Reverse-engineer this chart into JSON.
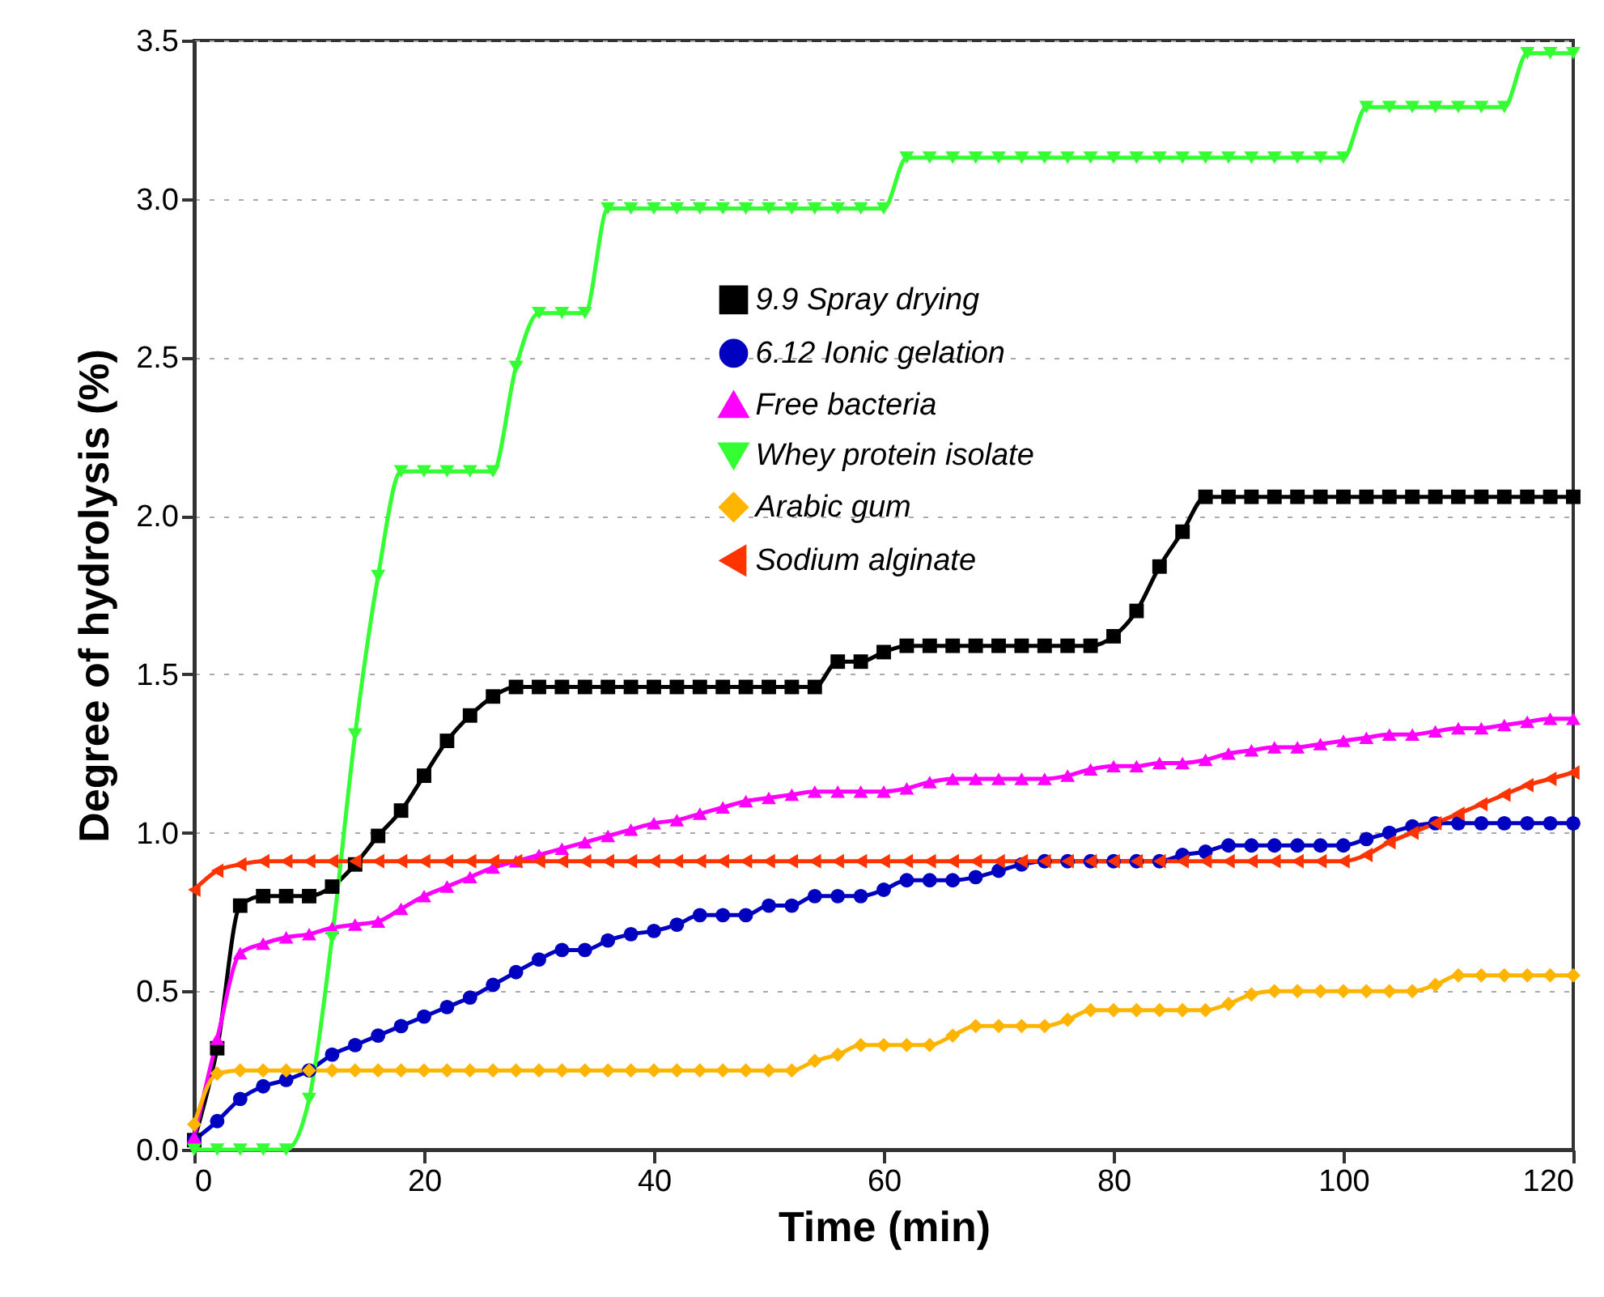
{
  "chart_data": {
    "type": "line",
    "xlabel": "Time (min)",
    "ylabel": "Degree of hydrolysis (%)",
    "x": [
      0,
      2,
      4,
      6,
      8,
      10,
      12,
      14,
      16,
      18,
      20,
      22,
      24,
      26,
      28,
      30,
      32,
      34,
      36,
      38,
      40,
      42,
      44,
      46,
      48,
      50,
      52,
      54,
      56,
      58,
      60,
      62,
      64,
      66,
      68,
      70,
      72,
      74,
      76,
      78,
      80,
      82,
      84,
      86,
      88,
      90,
      92,
      94,
      96,
      98,
      100,
      102,
      104,
      106,
      108,
      110,
      112,
      114,
      116,
      118,
      120
    ],
    "xlim": [
      0,
      120
    ],
    "xticks": [
      0,
      20,
      40,
      60,
      80,
      100,
      120
    ],
    "ylim": [
      0,
      3.5
    ],
    "yticks": [
      {
        "value": 0,
        "label": "0.0"
      },
      0.5,
      {
        "value": 1,
        "label": "1.0"
      },
      1.5,
      {
        "value": 2,
        "label": "2.0"
      },
      2.5,
      {
        "value": 3,
        "label": "3.0"
      },
      3.5
    ],
    "grid": "y",
    "legend": "top",
    "line_style": "solid",
    "series": [
      {
        "name": "9.9 Spray drying",
        "color": "#000000",
        "marker": "square",
        "values": [
          0.03,
          0.32,
          0.77,
          0.8,
          0.8,
          0.8,
          0.83,
          0.9,
          0.99,
          1.07,
          1.18,
          1.29,
          1.37,
          1.43,
          1.46,
          1.46,
          1.46,
          1.46,
          1.46,
          1.46,
          1.46,
          1.46,
          1.46,
          1.46,
          1.46,
          1.46,
          1.46,
          1.46,
          1.54,
          1.54,
          1.57,
          1.59,
          1.59,
          1.59,
          1.59,
          1.59,
          1.59,
          1.59,
          1.59,
          1.59,
          1.62,
          1.7,
          1.84,
          1.95,
          2.06,
          2.06,
          2.06,
          2.06,
          2.06,
          2.06,
          2.06,
          2.06,
          2.06,
          2.06,
          2.06,
          2.06,
          2.06,
          2.06,
          2.06,
          2.06,
          2.06
        ]
      },
      {
        "name": "6.12 Ionic gelation",
        "color": "#0000c0",
        "marker": "circle",
        "values": [
          0.03,
          0.09,
          0.16,
          0.2,
          0.22,
          0.25,
          0.3,
          0.33,
          0.36,
          0.39,
          0.42,
          0.45,
          0.48,
          0.52,
          0.56,
          0.6,
          0.63,
          0.63,
          0.66,
          0.68,
          0.69,
          0.71,
          0.74,
          0.74,
          0.74,
          0.77,
          0.77,
          0.8,
          0.8,
          0.8,
          0.82,
          0.85,
          0.85,
          0.85,
          0.86,
          0.88,
          0.9,
          0.91,
          0.91,
          0.91,
          0.91,
          0.91,
          0.91,
          0.93,
          0.94,
          0.96,
          0.96,
          0.96,
          0.96,
          0.96,
          0.96,
          0.98,
          1.0,
          1.02,
          1.03,
          1.03,
          1.03,
          1.03,
          1.03,
          1.03,
          1.03
        ]
      },
      {
        "name": "Free bacteria",
        "color": "#ff00ff",
        "marker": "triangle",
        "values": [
          0.04,
          0.35,
          0.62,
          0.65,
          0.67,
          0.68,
          0.7,
          0.71,
          0.72,
          0.76,
          0.8,
          0.83,
          0.86,
          0.89,
          0.91,
          0.93,
          0.95,
          0.97,
          0.99,
          1.01,
          1.03,
          1.04,
          1.06,
          1.08,
          1.1,
          1.11,
          1.12,
          1.13,
          1.13,
          1.13,
          1.13,
          1.14,
          1.16,
          1.17,
          1.17,
          1.17,
          1.17,
          1.17,
          1.18,
          1.2,
          1.21,
          1.21,
          1.22,
          1.22,
          1.23,
          1.25,
          1.26,
          1.27,
          1.27,
          1.28,
          1.29,
          1.3,
          1.31,
          1.31,
          1.32,
          1.33,
          1.33,
          1.34,
          1.35,
          1.36,
          1.36
        ]
      },
      {
        "name": "Whey protein isolate",
        "color": "#33ff33",
        "marker": "triangle-down",
        "values": [
          0,
          0,
          0,
          0,
          0,
          0.16,
          0.67,
          1.31,
          1.81,
          2.14,
          2.14,
          2.14,
          2.14,
          2.14,
          2.47,
          2.64,
          2.64,
          2.64,
          2.97,
          2.97,
          2.97,
          2.97,
          2.97,
          2.97,
          2.97,
          2.97,
          2.97,
          2.97,
          2.97,
          2.97,
          2.97,
          3.13,
          3.13,
          3.13,
          3.13,
          3.13,
          3.13,
          3.13,
          3.13,
          3.13,
          3.13,
          3.13,
          3.13,
          3.13,
          3.13,
          3.13,
          3.13,
          3.13,
          3.13,
          3.13,
          3.13,
          3.29,
          3.29,
          3.29,
          3.29,
          3.29,
          3.29,
          3.29,
          3.46,
          3.46,
          3.46
        ]
      },
      {
        "name": "Arabic gum",
        "color": "#ffb400",
        "marker": "diamond",
        "values": [
          0.08,
          0.24,
          0.25,
          0.25,
          0.25,
          0.25,
          0.25,
          0.25,
          0.25,
          0.25,
          0.25,
          0.25,
          0.25,
          0.25,
          0.25,
          0.25,
          0.25,
          0.25,
          0.25,
          0.25,
          0.25,
          0.25,
          0.25,
          0.25,
          0.25,
          0.25,
          0.25,
          0.28,
          0.3,
          0.33,
          0.33,
          0.33,
          0.33,
          0.36,
          0.39,
          0.39,
          0.39,
          0.39,
          0.41,
          0.44,
          0.44,
          0.44,
          0.44,
          0.44,
          0.44,
          0.46,
          0.49,
          0.5,
          0.5,
          0.5,
          0.5,
          0.5,
          0.5,
          0.5,
          0.52,
          0.55,
          0.55,
          0.55,
          0.55,
          0.55,
          0.55
        ]
      },
      {
        "name": "Sodium alginate",
        "color": "#ff3300",
        "marker": "triangle-left",
        "values": [
          0.82,
          0.88,
          0.9,
          0.91,
          0.91,
          0.91,
          0.91,
          0.91,
          0.91,
          0.91,
          0.91,
          0.91,
          0.91,
          0.91,
          0.91,
          0.91,
          0.91,
          0.91,
          0.91,
          0.91,
          0.91,
          0.91,
          0.91,
          0.91,
          0.91,
          0.91,
          0.91,
          0.91,
          0.91,
          0.91,
          0.91,
          0.91,
          0.91,
          0.91,
          0.91,
          0.91,
          0.91,
          0.91,
          0.91,
          0.91,
          0.91,
          0.91,
          0.91,
          0.91,
          0.91,
          0.91,
          0.91,
          0.91,
          0.91,
          0.91,
          0.91,
          0.93,
          0.97,
          1.0,
          1.03,
          1.06,
          1.09,
          1.12,
          1.15,
          1.17,
          1.19
        ]
      }
    ]
  }
}
